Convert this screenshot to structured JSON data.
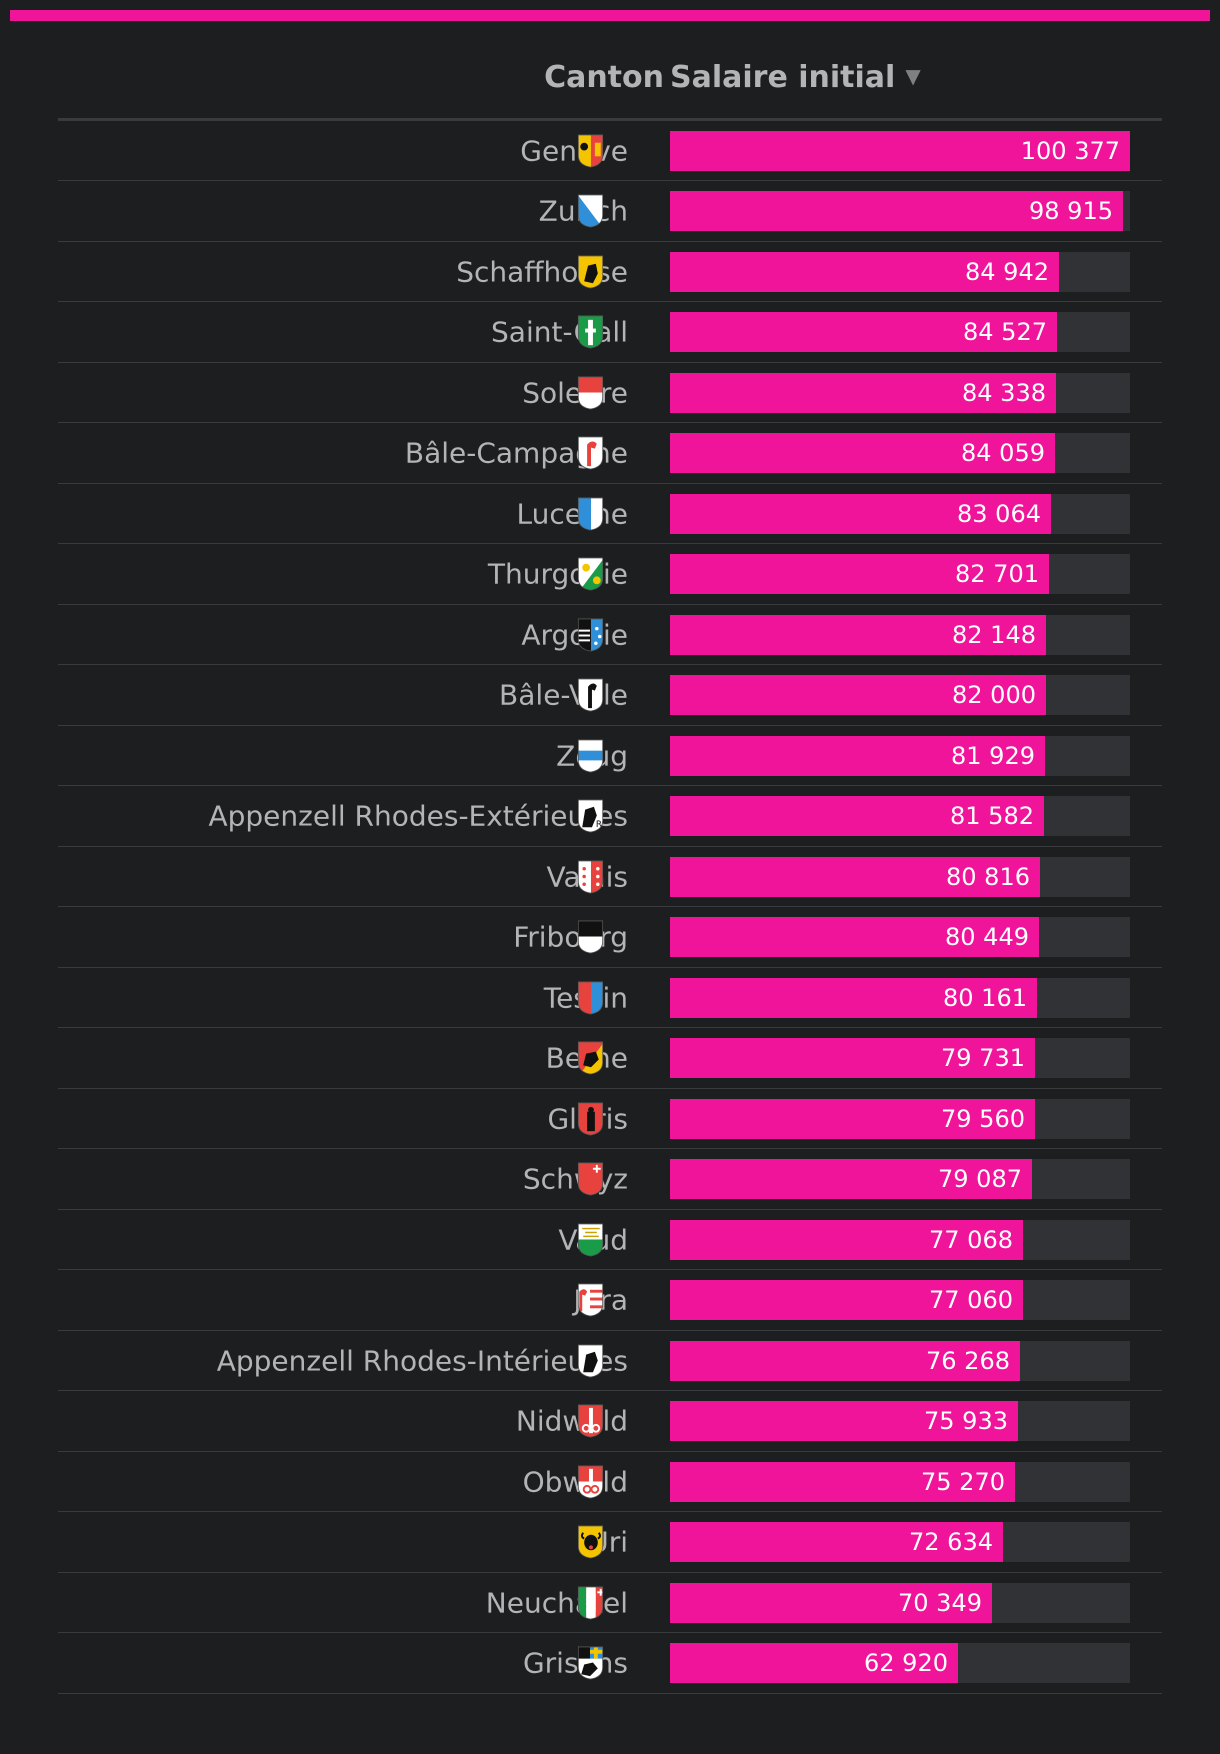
{
  "colors": {
    "accent": "#f0149a",
    "background": "#1d1e20",
    "track": "#313235",
    "text": "#b4b4b6"
  },
  "header": {
    "canton_label": "Canton",
    "salary_label": "Salaire initial",
    "sort_icon": "sort-descending-icon"
  },
  "chart_data": {
    "type": "bar",
    "orientation": "horizontal",
    "xlim": [
      0,
      100377
    ],
    "categories": [
      "Genève",
      "Zurich",
      "Schaffhouse",
      "Saint-Gall",
      "Soleure",
      "Bâle-Campagne",
      "Lucerne",
      "Thurgovie",
      "Argovie",
      "Bâle-Ville",
      "Zoug",
      "Appenzell Rhodes-Extérieures",
      "Valais",
      "Fribourg",
      "Tessin",
      "Berne",
      "Glaris",
      "Schwyz",
      "Vaud",
      "Jura",
      "Appenzell Rhodes-Intérieures",
      "Nidwald",
      "Obwald",
      "Uri",
      "Neuchâtel",
      "Grisons"
    ],
    "values": [
      100377,
      98915,
      84942,
      84527,
      84338,
      84059,
      83064,
      82701,
      82148,
      82000,
      81929,
      81582,
      80816,
      80449,
      80161,
      79731,
      79560,
      79087,
      77068,
      77060,
      76268,
      75933,
      75270,
      72634,
      70349,
      62920
    ],
    "value_labels": [
      "100 377",
      "98 915",
      "84 942",
      "84 527",
      "84 338",
      "84 059",
      "83 064",
      "82 701",
      "82 148",
      "82 000",
      "81 929",
      "81 582",
      "80 816",
      "80 449",
      "80 161",
      "79 731",
      "79 560",
      "79 087",
      "77 068",
      "77 060",
      "76 268",
      "75 933",
      "75 270",
      "72 634",
      "70 349",
      "62 920"
    ],
    "flag_icons": [
      "geneve-flag-icon",
      "zurich-flag-icon",
      "schaffhouse-flag-icon",
      "saint-gall-flag-icon",
      "soleure-flag-icon",
      "bale-campagne-flag-icon",
      "lucerne-flag-icon",
      "thurgovie-flag-icon",
      "argovie-flag-icon",
      "bale-ville-flag-icon",
      "zoug-flag-icon",
      "appenzell-ext-flag-icon",
      "valais-flag-icon",
      "fribourg-flag-icon",
      "tessin-flag-icon",
      "berne-flag-icon",
      "glaris-flag-icon",
      "schwyz-flag-icon",
      "vaud-flag-icon",
      "jura-flag-icon",
      "appenzell-int-flag-icon",
      "nidwald-flag-icon",
      "obwald-flag-icon",
      "uri-flag-icon",
      "neuchatel-flag-icon",
      "grisons-flag-icon"
    ]
  }
}
